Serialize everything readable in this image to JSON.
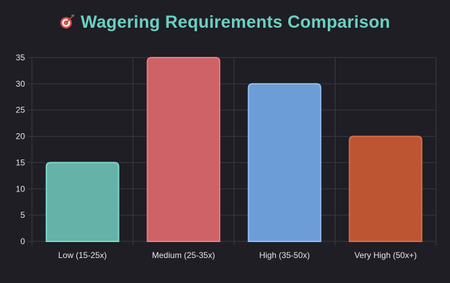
{
  "title": "Wagering Requirements Comparison",
  "title_icon": "dart-target-icon",
  "colors": {
    "background": "#1e1e24",
    "title": "#6ccfc0",
    "grid": "#3a3a44",
    "text": "#e6e6e6"
  },
  "chart_data": {
    "type": "bar",
    "title": "Wagering Requirements Comparison",
    "categories": [
      "Low (15-25x)",
      "Medium (25-35x)",
      "High (35-50x)",
      "Very High (50x+)"
    ],
    "values": [
      15,
      35,
      30,
      20
    ],
    "bar_colors": [
      "#65b2a8",
      "#ce6266",
      "#6c9dd6",
      "#bd5533"
    ],
    "bar_border_colors": [
      "#7dd6c9",
      "#e87a7e",
      "#8fbcf0",
      "#d86a44"
    ],
    "xlabel": "",
    "ylabel": "",
    "ylim": [
      0,
      35
    ],
    "yticks": [
      0,
      5,
      10,
      15,
      20,
      25,
      30,
      35
    ],
    "grid": true,
    "legend": "none"
  }
}
